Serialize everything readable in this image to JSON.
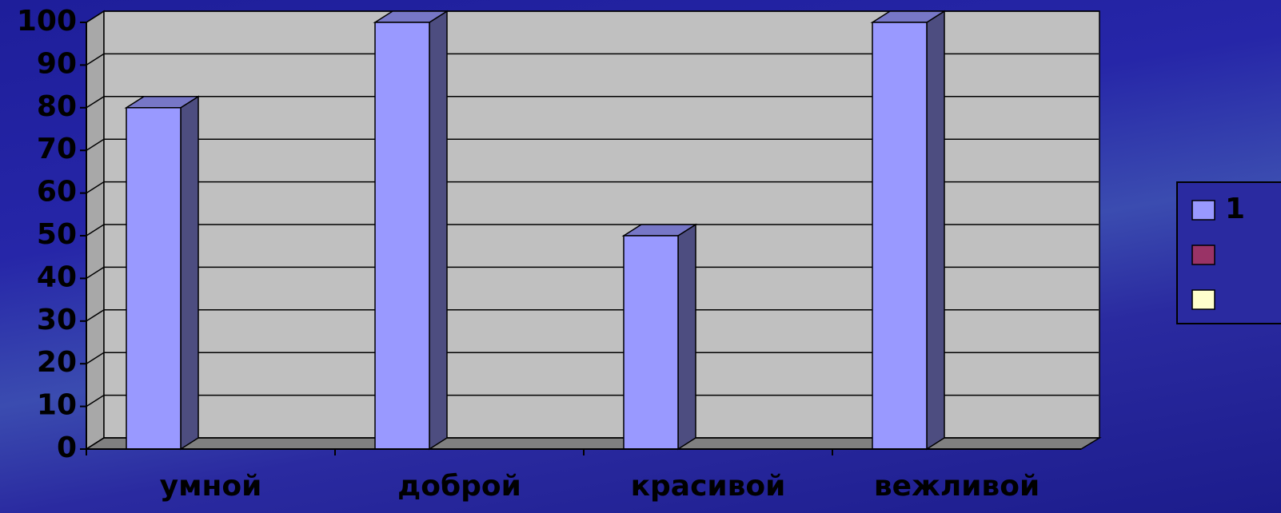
{
  "chart_data": {
    "type": "bar3d",
    "categories": [
      "умной",
      "доброй",
      "красивой",
      "вежливой"
    ],
    "series": [
      {
        "name": "1",
        "color": "#9999ff",
        "values": [
          80,
          100,
          50,
          100
        ]
      },
      {
        "name": null,
        "color": "#993366",
        "values": [
          null,
          null,
          null,
          null
        ]
      },
      {
        "name": null,
        "color": "#ffffcc",
        "values": [
          null,
          null,
          null,
          null
        ]
      }
    ],
    "ylim": [
      0,
      100
    ],
    "yticks": [
      0,
      10,
      20,
      30,
      40,
      50,
      60,
      70,
      80,
      90,
      100
    ],
    "grid": true,
    "legend": "right"
  }
}
